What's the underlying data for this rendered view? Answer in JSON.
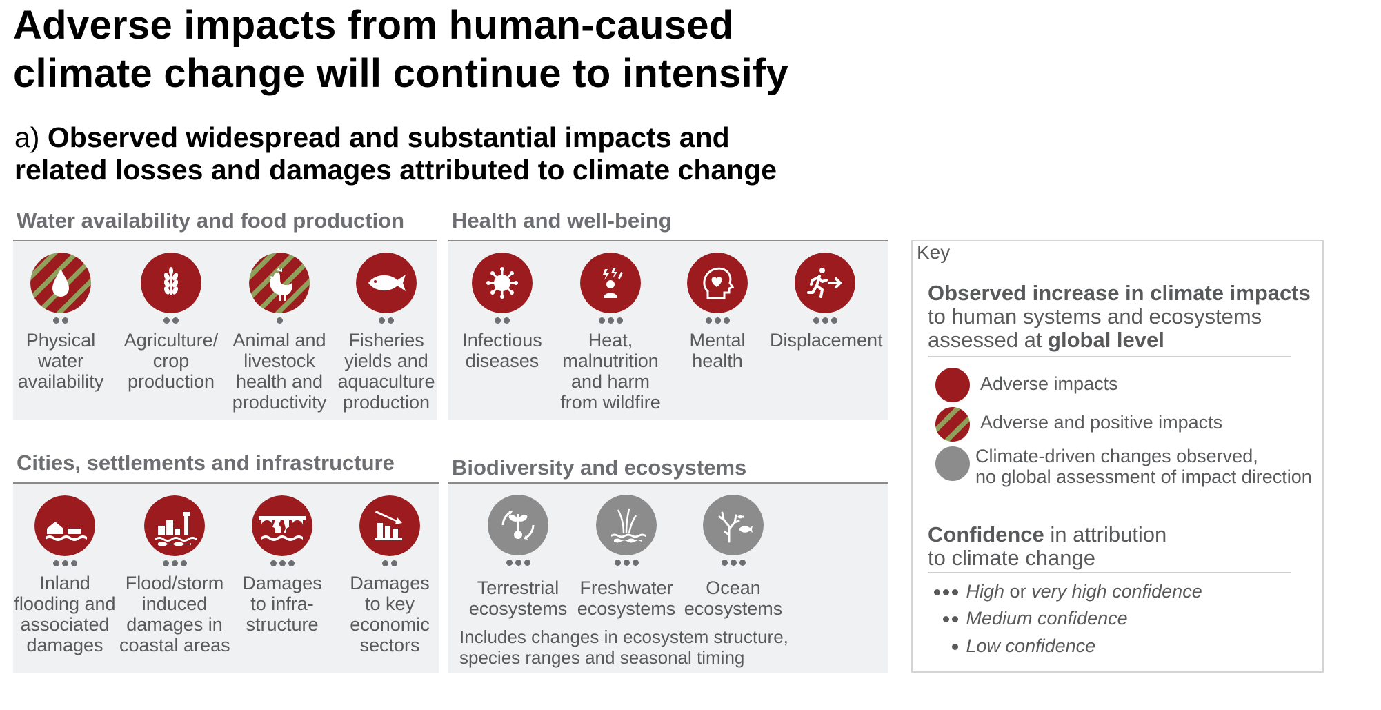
{
  "title_line1": "Adverse impacts from human-caused",
  "title_line2": "climate change will continue to intensify",
  "subtitle_prefix": "a) ",
  "subtitle_line1": "Observed widespread and substantial impacts and",
  "subtitle_line2": "related losses and damages attributed to climate change",
  "colors": {
    "adverse": "#9b1b1f",
    "positive_stripe": "#8ea05a",
    "neutral": "#8c8c8c"
  },
  "panels": {
    "water": {
      "title": "Water availability and food production",
      "items": [
        {
          "icon": "water-drop-icon",
          "style": "mixed",
          "dots": 2,
          "label": [
            "Physical",
            "water",
            "availability"
          ]
        },
        {
          "icon": "wheat-icon",
          "style": "adverse",
          "dots": 2,
          "label": [
            "Agriculture/",
            "crop",
            "production"
          ]
        },
        {
          "icon": "chicken-icon",
          "style": "mixed",
          "dots": 1,
          "label": [
            "Animal and",
            "livestock",
            "health and",
            "productivity"
          ]
        },
        {
          "icon": "fish-icon",
          "style": "adverse",
          "dots": 2,
          "label": [
            "Fisheries",
            "yields and",
            "aquaculture",
            "production"
          ]
        }
      ]
    },
    "health": {
      "title": "Health and well-being",
      "items": [
        {
          "icon": "virus-icon",
          "style": "adverse",
          "dots": 2,
          "label": [
            "Infectious",
            "diseases"
          ]
        },
        {
          "icon": "heat-person-icon",
          "style": "adverse",
          "dots": 3,
          "label": [
            "Heat,",
            "malnutrition",
            "and harm",
            "from wildfire"
          ]
        },
        {
          "icon": "head-heart-icon",
          "style": "adverse",
          "dots": 3,
          "label": [
            "Mental",
            "health"
          ]
        },
        {
          "icon": "running-exit-icon",
          "style": "adverse",
          "dots": 3,
          "label": [
            "Displacement"
          ]
        }
      ]
    },
    "cities": {
      "title": "Cities, settlements and infrastructure",
      "items": [
        {
          "icon": "flooded-house-icon",
          "style": "adverse",
          "dots": 3,
          "label": [
            "Inland",
            "flooding and",
            "associated",
            "damages"
          ]
        },
        {
          "icon": "coastal-storm-icon",
          "style": "adverse",
          "dots": 3,
          "label": [
            "Flood/storm",
            "induced",
            "damages in",
            "coastal areas"
          ]
        },
        {
          "icon": "broken-bridge-icon",
          "style": "adverse",
          "dots": 3,
          "label": [
            "Damages",
            "to infra-",
            "structure"
          ]
        },
        {
          "icon": "declining-chart-icon",
          "style": "adverse",
          "dots": 2,
          "label": [
            "Damages",
            "to key",
            "economic",
            "sectors"
          ]
        }
      ]
    },
    "biodiversity": {
      "title": "Biodiversity and ecosystems",
      "items": [
        {
          "icon": "plant-cycle-icon",
          "style": "neutral",
          "dots": 3,
          "label": [
            "Terrestrial",
            "ecosystems"
          ]
        },
        {
          "icon": "reeds-water-icon",
          "style": "neutral",
          "dots": 3,
          "label": [
            "Freshwater",
            "ecosystems"
          ]
        },
        {
          "icon": "coral-fish-icon",
          "style": "neutral",
          "dots": 3,
          "label": [
            "Ocean",
            "ecosystems"
          ]
        }
      ],
      "note_line1": "Includes changes in ecosystem structure,",
      "note_line2": "species ranges and seasonal timing"
    }
  },
  "key": {
    "title": "Key",
    "observed_bold": "Observed increase in climate impacts",
    "observed_line2": "to human systems and ecosystems",
    "observed_line3_prefix": "assessed at ",
    "observed_line3_bold": "global level",
    "legend_adverse": "Adverse impacts",
    "legend_mixed": "Adverse and positive impacts",
    "legend_neutral_line1": "Climate-driven changes observed,",
    "legend_neutral_line2": "no global assessment of impact direction",
    "confidence_bold": "Confidence",
    "confidence_rest": " in attribution",
    "confidence_line2": "to climate change",
    "conf_high_a": "High",
    "conf_high_b": " or ",
    "conf_high_c": "very high confidence",
    "conf_medium": "Medium confidence",
    "conf_low": "Low confidence"
  }
}
